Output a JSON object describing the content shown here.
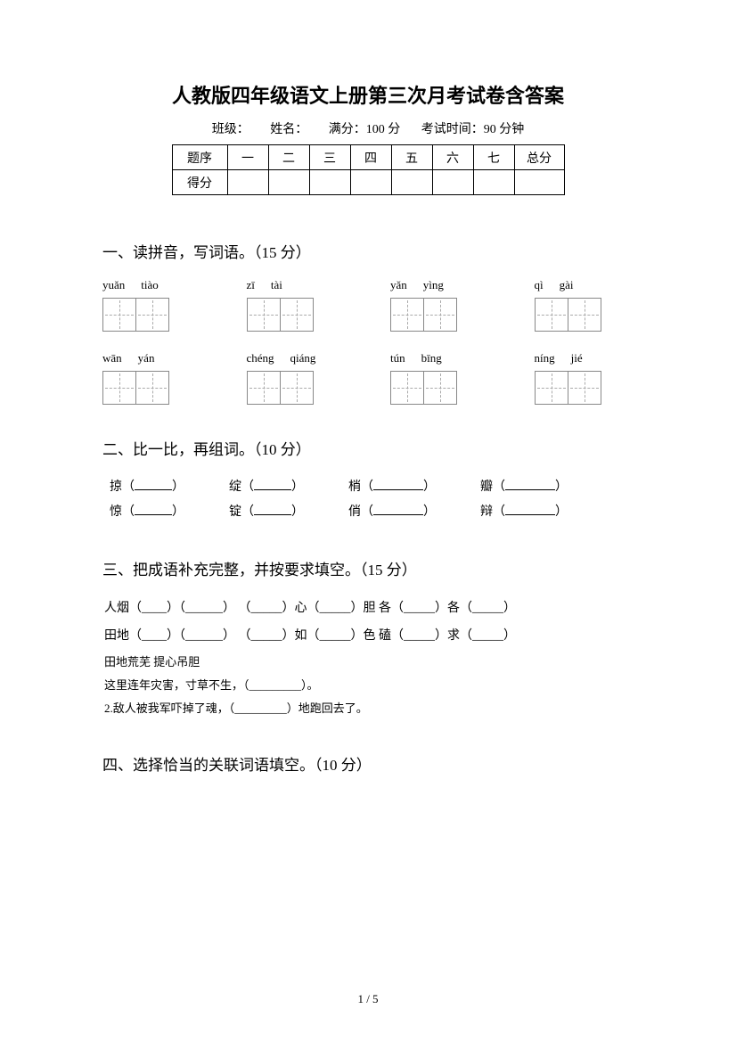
{
  "title": "人教版四年级语文上册第三次月考试卷含答案",
  "info": {
    "class_label": "班级：",
    "name_label": "姓名：",
    "full_score_label": "满分：100 分",
    "time_label": "考试时间：90 分钟"
  },
  "score_table": {
    "row1": [
      "题序",
      "一",
      "二",
      "三",
      "四",
      "五",
      "六",
      "七",
      "总分"
    ],
    "row2_label": "得分"
  },
  "section1": {
    "title": "一、读拼音，写词语。（15 分）",
    "pinyin_row1": [
      [
        "yuǎn",
        "tiào"
      ],
      [
        "zī",
        "tài"
      ],
      [
        "yǎn",
        "yìng"
      ],
      [
        "qì",
        "gài"
      ]
    ],
    "pinyin_row2": [
      [
        "wān",
        "yán"
      ],
      [
        "chéng",
        "qiáng"
      ],
      [
        "tún",
        "bīng"
      ],
      [
        "níng",
        "jié"
      ]
    ]
  },
  "section2": {
    "title": "二、比一比，再组词。（10 分）",
    "pairs": [
      [
        "掠",
        "惊"
      ],
      [
        "绽",
        "锭"
      ],
      [
        "梢",
        "俏"
      ],
      [
        "瓣",
        "辩"
      ]
    ]
  },
  "section3": {
    "title": "三、把成语补充完整，并按要求填空。（15 分）",
    "line1": "人烟（____）（______）  （_____）心（_____）胆   各（_____）各（_____）",
    "line2": "田地（____）（______）  （_____）如（_____）色   磕（_____）求（_____）",
    "line3": "田地荒芜     提心吊胆",
    "line4": "这里连年灾害，寸草不生，（_________）。",
    "line5": "2.敌人被我军吓掉了魂，（_________）地跑回去了。"
  },
  "section4": {
    "title": "四、选择恰当的关联词语填空。（10 分）"
  },
  "footer": "1 / 5"
}
